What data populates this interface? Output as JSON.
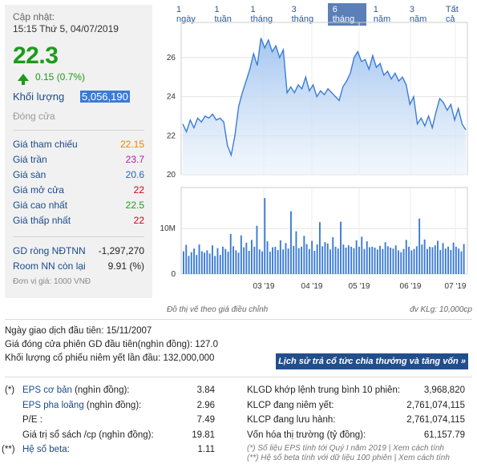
{
  "header": {
    "update_label": "Cập nhật:",
    "update_time": "15:15 Thứ 5, 04/07/2019",
    "price": "22.3",
    "change": "0.15 (0.7%)",
    "volume_label": "Khối lượng",
    "volume_value": "5,056,190",
    "status": "Đóng cửa"
  },
  "stats": [
    {
      "label": "Giá tham chiếu",
      "value": "22.15"
    },
    {
      "label": "Giá trần",
      "value": "23.7"
    },
    {
      "label": "Giá sàn",
      "value": "20.6"
    },
    {
      "label": "Giá mở cửa",
      "value": "22"
    },
    {
      "label": "Giá cao nhất",
      "value": "22.5"
    },
    {
      "label": "Giá thấp nhất",
      "value": "22"
    }
  ],
  "foreign": [
    {
      "label": "GD ròng NĐTNN",
      "value": "-1,297,270"
    },
    {
      "label": "Room NN còn lại",
      "value": "9.91 (%)"
    }
  ],
  "unit_note": "Đơn vị giá: 1000 VNĐ",
  "tabs": [
    "1 ngày",
    "1 tuần",
    "1 tháng",
    "3 tháng",
    "6 tháng",
    "1 năm",
    "3 năm",
    "Tất cả"
  ],
  "active_tab": "6 tháng",
  "chart_data": [
    {
      "type": "area",
      "y_ticks": [
        "26",
        "24",
        "22",
        "20"
      ],
      "ylim": [
        20,
        27.8
      ],
      "x_ticks": [
        "03 '19",
        "04 '19",
        "05 '19",
        "06 '19",
        "07 '19"
      ],
      "values": [
        22.6,
        22.2,
        22.8,
        22.4,
        22.9,
        22.7,
        23.0,
        22.9,
        23.1,
        22.8,
        22.9,
        22.7,
        21.5,
        21.0,
        22.0,
        23.5,
        24.2,
        24.8,
        25.4,
        26.2,
        25.6,
        27.0,
        26.5,
        26.9,
        26.3,
        26.6,
        26.0,
        26.4,
        24.2,
        24.5,
        24.2,
        24.6,
        24.4,
        25.0,
        24.3,
        24.6,
        24.0,
        24.3,
        24.1,
        24.4,
        24.2,
        24.0,
        23.8,
        24.5,
        24.8,
        25.2,
        26.0,
        26.3,
        25.8,
        25.9,
        25.4,
        26.1,
        25.5,
        25.7,
        25.1,
        25.3,
        24.9,
        25.2,
        24.8,
        25.0,
        24.6,
        23.6,
        24.0,
        22.6,
        22.9,
        22.5,
        23.0,
        22.4,
        23.2,
        23.9,
        23.7,
        23.3,
        23.6,
        22.8,
        23.4,
        22.6,
        22.3
      ]
    },
    {
      "type": "bar",
      "y_ticks": [
        "10M",
        "0"
      ],
      "ylim": [
        0,
        19000000
      ],
      "values": [
        5.0,
        6.4,
        4.0,
        4.8,
        5.6,
        4.2,
        6.5,
        5.0,
        4.7,
        5.2,
        4.5,
        6.3,
        4.0,
        5.7,
        4.2,
        6.0,
        5.5,
        4.9,
        8.8,
        6.1,
        5.2,
        4.7,
        8.5,
        5.9,
        6.9,
        5.1,
        7.5,
        6.0,
        10.6,
        5.4,
        5.0,
        16.7,
        7.2,
        4.9,
        5.9,
        6.0,
        5.3,
        7.4,
        5.4,
        6.8,
        5.6,
        13.8,
        6.2,
        9.4,
        5.7,
        6.0,
        8.4,
        6.6,
        5.5,
        7.3,
        5.1,
        6.5,
        11.4,
        6.1,
        7.0,
        6.7,
        5.4,
        8.1,
        6.0,
        5.6,
        11.5,
        6.5,
        5.8,
        6.3,
        6.0,
        5.7,
        7.4,
        6.0,
        8.2,
        5.5,
        7.2,
        5.9,
        6.0,
        5.8,
        5.4,
        6.2,
        5.5,
        7.0,
        6.1,
        5.8,
        5.6,
        6.3,
        5.2,
        4.8,
        5.5,
        7.5,
        6.0,
        5.2,
        5.5,
        6.1,
        12.2,
        6.5,
        7.6,
        5.5,
        6.0,
        5.9,
        6.3,
        7.3,
        5.3,
        6.8,
        5.6,
        6.0,
        5.3,
        6.9,
        6.0,
        5.6,
        5.0,
        6.6
      ]
    }
  ],
  "chart_footnote_left": "Đồ thị vẽ theo giá điều chỉnh",
  "chart_footnote_right": "đv KLg: 10,000cp",
  "info": [
    {
      "label": "Ngày giao dịch đầu tiên:",
      "value": "15/11/2007"
    },
    {
      "label": "Giá đóng cửa phiên GD đầu tiên(nghìn đồng):",
      "value": "127.0"
    },
    {
      "label": "Khối lượng cổ phiếu niêm yết lần đầu:",
      "value": "132,000,000"
    }
  ],
  "history_button": "Lịch sử trả cổ tức chia thưởng và tăng vốn »",
  "eps": [
    {
      "mark": "(*)",
      "label": "EPS cơ bản",
      "unit": " (nghìn đồng):",
      "value": "3.84"
    },
    {
      "mark": "",
      "label": "EPS pha loãng",
      "unit": " (nghìn đồng):",
      "value": "2.96"
    },
    {
      "mark": "",
      "label": "P/E",
      "unit": " :",
      "value": "7.49"
    },
    {
      "mark": "",
      "label": "Giá trị sổ sách /cp",
      "unit": " (nghìn đồng):",
      "value": "19.81"
    },
    {
      "mark": "(**)",
      "label": "Hệ số beta",
      "unit": ":",
      "value": "1.11"
    }
  ],
  "market": [
    {
      "label": "KLGD khớp lệnh trung bình 10 phiên:",
      "value": "3,968,820"
    },
    {
      "label": "KLCP đang niêm yết:",
      "value": "2,761,074,115"
    },
    {
      "label": "KLCP đang lưu hành:",
      "value": "2,761,074,115"
    },
    {
      "label": "Vốn hóa thị trường (tỷ đồng):",
      "value": "61,157.79"
    }
  ],
  "notes": [
    "(*) Số liệu EPS tính tới Quý I năm 2019 | Xem cách tính",
    "(**) Hệ số beta tính với dữ liệu 100 phiên | Xem cách tính"
  ],
  "colors": {
    "up": "#1a9c1a",
    "ref": "#e08a00",
    "ceil": "#b5199f",
    "floor": "#1a6ab0",
    "line": "#3b7bd6"
  }
}
